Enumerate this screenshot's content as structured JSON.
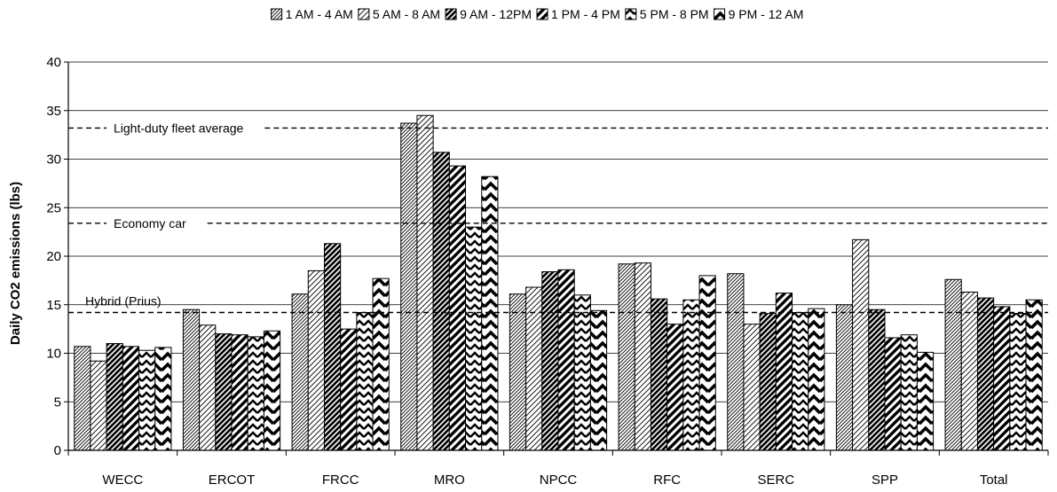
{
  "chart_data": {
    "type": "bar",
    "title": "",
    "xlabel": "",
    "ylabel": "Daily CO2 emissions (lbs)",
    "ylim": [
      0,
      40
    ],
    "yticks": [
      0,
      5,
      10,
      15,
      20,
      25,
      30,
      35,
      40
    ],
    "grid": "horizontal",
    "legend_position": "top",
    "categories": [
      "WECC",
      "ERCOT",
      "FRCC",
      "MRO",
      "NPCC",
      "RFC",
      "SERC",
      "SPP",
      "Total"
    ],
    "series": [
      {
        "name": "1 AM - 4 AM",
        "pattern": "fine-diagonal-dense",
        "values": [
          10.7,
          14.5,
          16.1,
          33.7,
          16.1,
          19.2,
          18.2,
          15.0,
          17.6
        ]
      },
      {
        "name": "5 AM - 8 AM",
        "pattern": "fine-diagonal",
        "values": [
          9.2,
          12.9,
          18.5,
          34.5,
          16.8,
          19.3,
          13.0,
          21.7,
          16.3
        ]
      },
      {
        "name": "9 AM - 12PM",
        "pattern": "dark-diagonal",
        "values": [
          11.0,
          12.0,
          21.3,
          30.7,
          18.4,
          15.6,
          14.1,
          14.5,
          15.7
        ]
      },
      {
        "name": "1 PM - 4 PM",
        "pattern": "wide-diagonal",
        "values": [
          10.7,
          11.9,
          12.5,
          29.3,
          18.6,
          13.0,
          16.2,
          11.6,
          14.8
        ]
      },
      {
        "name": "5 PM - 8 PM",
        "pattern": "chevron-narrow",
        "values": [
          10.3,
          11.7,
          14.2,
          23.0,
          16.0,
          15.5,
          14.2,
          11.9,
          14.1
        ]
      },
      {
        "name": "9 PM - 12 AM",
        "pattern": "chevron-wide",
        "values": [
          10.6,
          12.3,
          17.7,
          28.2,
          14.4,
          18.0,
          14.6,
          10.1,
          15.5
        ]
      }
    ],
    "reference_lines": [
      {
        "label": "Light-duty fleet average",
        "value": 33.2
      },
      {
        "label": "Economy car",
        "value": 23.4
      },
      {
        "label": "Hybrid (Prius)",
        "value": 14.2
      }
    ]
  }
}
